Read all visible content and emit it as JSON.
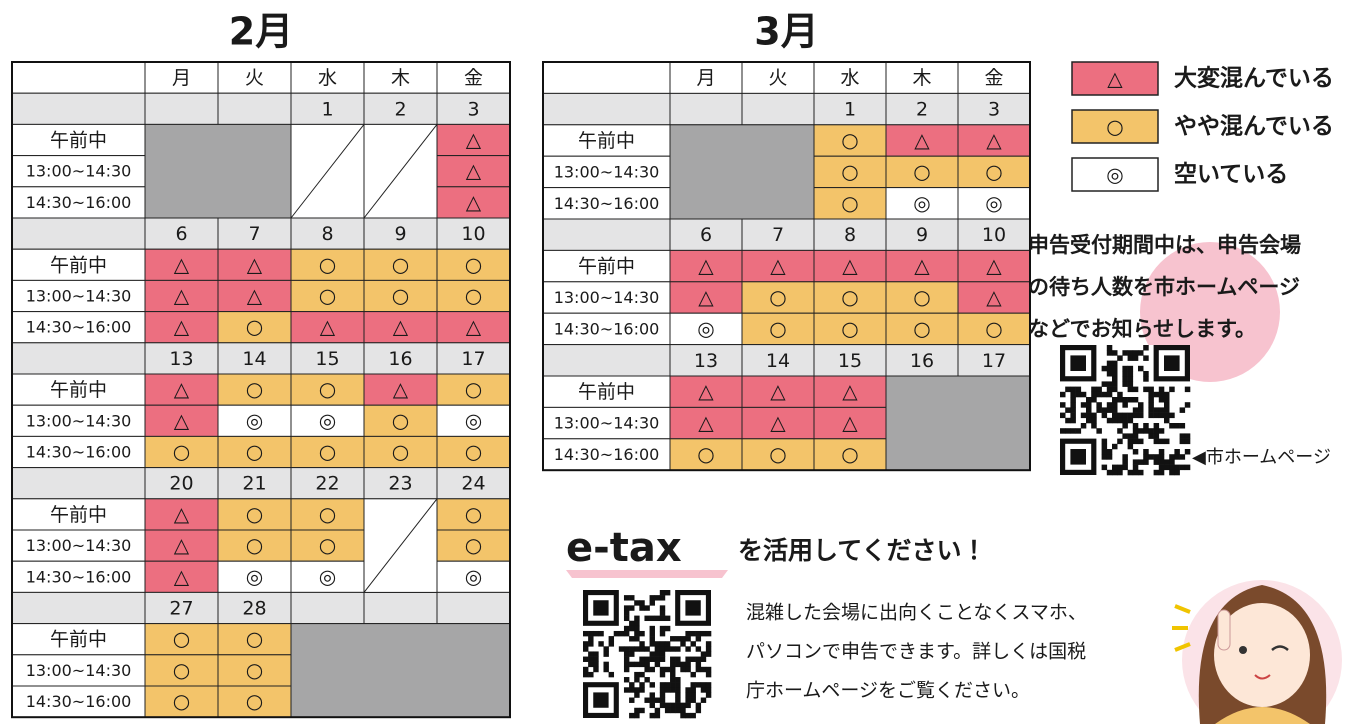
{
  "february": {
    "title": "2月",
    "weekdays": [
      "月",
      "火",
      "水",
      "木",
      "金"
    ],
    "slots": [
      "午前中",
      "13:00~14:30",
      "14:30~16:00"
    ],
    "weeks": [
      {
        "dates": [
          null,
          null,
          1,
          2,
          3
        ],
        "cells": [
          [
            null,
            null,
            null,
            null,
            "△"
          ],
          [
            null,
            null,
            null,
            null,
            "△"
          ],
          [
            null,
            null,
            null,
            null,
            "△"
          ]
        ]
      },
      {
        "dates": [
          6,
          7,
          8,
          9,
          10
        ],
        "cells": [
          [
            "△",
            "△",
            "○",
            "○",
            "○"
          ],
          [
            "△",
            "△",
            "○",
            "○",
            "○"
          ],
          [
            "△",
            "○",
            "△",
            "△",
            "△"
          ]
        ]
      },
      {
        "dates": [
          13,
          14,
          15,
          16,
          17
        ],
        "cells": [
          [
            "△",
            "○",
            "○",
            "△",
            "○"
          ],
          [
            "△",
            "◎",
            "◎",
            "○",
            "◎"
          ],
          [
            "○",
            "○",
            "○",
            "○",
            "○"
          ]
        ]
      },
      {
        "dates": [
          20,
          21,
          22,
          23,
          24
        ],
        "cells": [
          [
            "△",
            "○",
            "○",
            null,
            "○"
          ],
          [
            "△",
            "○",
            "○",
            null,
            "○"
          ],
          [
            "△",
            "◎",
            "◎",
            null,
            "◎"
          ]
        ]
      },
      {
        "dates": [
          27,
          28,
          null,
          null,
          null
        ],
        "cells": [
          [
            "○",
            "○",
            null,
            null,
            null
          ],
          [
            "○",
            "○",
            null,
            null,
            null
          ],
          [
            "○",
            "○",
            null,
            null,
            null
          ]
        ]
      }
    ]
  },
  "march": {
    "title": "3月",
    "weekdays": [
      "月",
      "火",
      "水",
      "木",
      "金"
    ],
    "slots": [
      "午前中",
      "13:00~14:30",
      "14:30~16:00"
    ],
    "weeks": [
      {
        "dates": [
          null,
          null,
          1,
          2,
          3
        ],
        "cells": [
          [
            null,
            null,
            "○",
            "△",
            "△"
          ],
          [
            null,
            null,
            "○",
            "○",
            "○"
          ],
          [
            null,
            null,
            "○",
            "◎",
            "◎"
          ]
        ]
      },
      {
        "dates": [
          6,
          7,
          8,
          9,
          10
        ],
        "cells": [
          [
            "△",
            "△",
            "△",
            "△",
            "△"
          ],
          [
            "△",
            "○",
            "○",
            "○",
            "△"
          ],
          [
            "◎",
            "○",
            "○",
            "○",
            "○"
          ]
        ]
      },
      {
        "dates": [
          13,
          14,
          15,
          16,
          17
        ],
        "cells": [
          [
            "△",
            "△",
            "△",
            null,
            null
          ],
          [
            "△",
            "△",
            "△",
            null,
            null
          ],
          [
            "○",
            "○",
            "○",
            null,
            null
          ]
        ]
      }
    ]
  },
  "legend": [
    {
      "symbol": "△",
      "label": "大変混んでいる"
    },
    {
      "symbol": "○",
      "label": "やや混んでいる"
    },
    {
      "symbol": "◎",
      "label": "空いている"
    }
  ],
  "notice": {
    "lines": [
      "申告受付期間中は、申告会場",
      "の待ち人数を市ホームページ",
      "などでお知らせします。"
    ],
    "qr_caption": "◀市ホームページ"
  },
  "etax": {
    "logo": "e-tax",
    "heading": "を活用してください！",
    "lines": [
      "混雑した会場に出向くことなくスマホ、",
      "パソコンで申告できます。詳しくは国税",
      "庁ホームページをご覧ください。"
    ]
  }
}
